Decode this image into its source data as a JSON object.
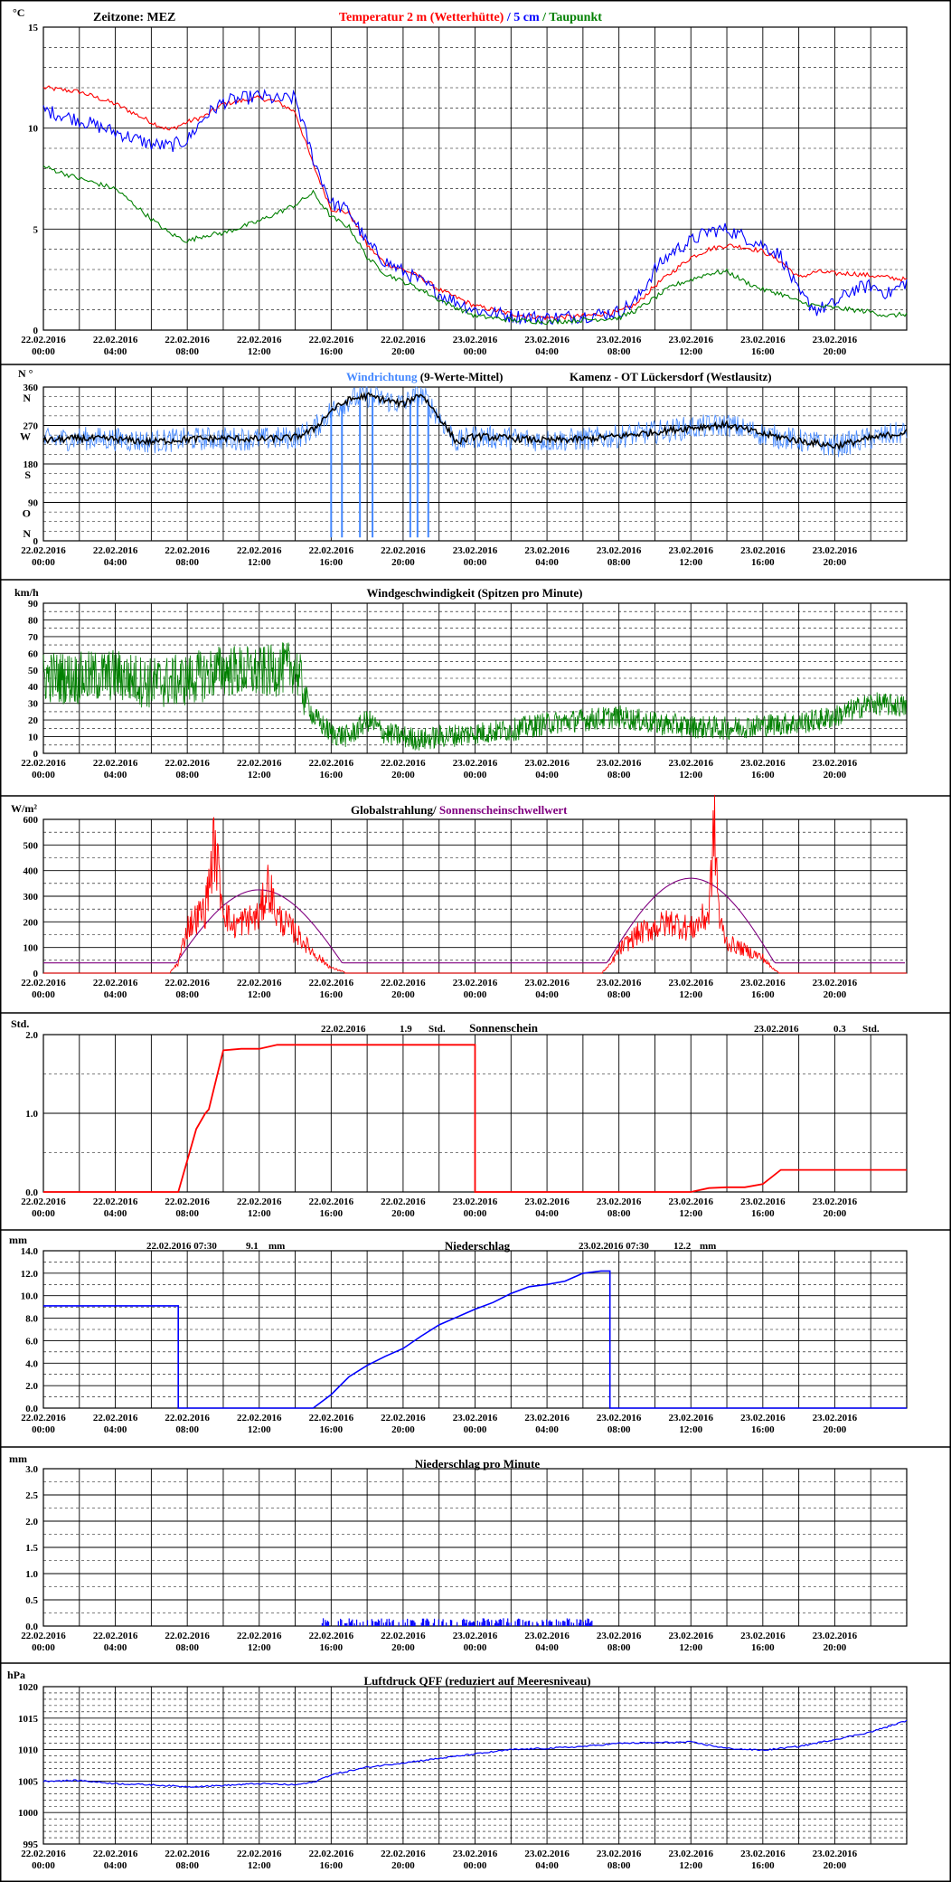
{
  "x_ticks": [
    {
      "date": "22.02.2016",
      "time": "00:00"
    },
    {
      "date": "22.02.2016",
      "time": "04:00"
    },
    {
      "date": "22.02.2016",
      "time": "08:00"
    },
    {
      "date": "22.02.2016",
      "time": "12:00"
    },
    {
      "date": "22.02.2016",
      "time": "16:00"
    },
    {
      "date": "22.02.2016",
      "time": "20:00"
    },
    {
      "date": "23.02.2016",
      "time": "00:00"
    },
    {
      "date": "23.02.2016",
      "time": "04:00"
    },
    {
      "date": "23.02.2016",
      "time": "08:00"
    },
    {
      "date": "23.02.2016",
      "time": "12:00"
    },
    {
      "date": "23.02.2016",
      "time": "16:00"
    },
    {
      "date": "23.02.2016",
      "time": "20:00"
    }
  ],
  "colors": {
    "red": "#ff0000",
    "blue": "#0000ff",
    "green": "#008000",
    "black": "#000000",
    "purple": "#800080",
    "lightblue": "#4488ff",
    "grid": "#000000"
  },
  "chart_data": [
    {
      "id": "temperature",
      "type": "line",
      "unit": "°C",
      "header_left": "Zeitzone: MEZ",
      "title_parts": [
        {
          "text": "Temperatur 2 m (Wetterhütte)",
          "color": "#ff0000"
        },
        {
          "text": " / ",
          "color": "#0000ff"
        },
        {
          "text": "5 cm",
          "color": "#0000ff"
        },
        {
          "text": " / ",
          "color": "#008000"
        },
        {
          "text": "Taupunkt",
          "color": "#008000"
        }
      ],
      "ylim": [
        0,
        15
      ],
      "yticks": [
        0,
        5,
        10,
        15
      ],
      "x_hours": [
        0,
        2,
        4,
        6,
        7,
        8,
        9,
        10,
        12,
        13,
        14,
        15,
        16,
        17,
        18,
        19,
        20,
        21,
        22,
        24,
        26,
        28,
        30,
        32,
        33,
        34,
        35,
        36,
        37,
        38,
        39,
        40,
        41,
        42,
        43,
        44,
        45,
        46,
        47,
        48
      ],
      "series": [
        {
          "name": "Temperatur 2 m (Wetterhütte)",
          "color": "#ff0000",
          "values": [
            12.0,
            11.8,
            11.2,
            10.3,
            9.9,
            10.3,
            10.6,
            11.2,
            11.5,
            11.3,
            10.8,
            8.2,
            6.0,
            5.8,
            4.2,
            3.3,
            3.0,
            2.6,
            2.0,
            1.2,
            0.8,
            0.6,
            0.7,
            0.9,
            1.3,
            2.2,
            2.9,
            3.6,
            4.0,
            4.2,
            4.1,
            3.9,
            3.4,
            2.6,
            2.9,
            2.8,
            2.8,
            2.7,
            2.6,
            2.5
          ]
        },
        {
          "name": "5 cm",
          "color": "#0000ff",
          "values": [
            10.9,
            10.4,
            9.8,
            9.2,
            9.1,
            9.4,
            10.6,
            11.3,
            11.6,
            11.4,
            11.5,
            8.5,
            6.3,
            5.9,
            4.3,
            3.4,
            2.9,
            2.4,
            1.8,
            1.0,
            0.7,
            0.6,
            0.7,
            0.9,
            1.5,
            3.0,
            3.9,
            4.4,
            4.9,
            5.0,
            4.6,
            4.2,
            3.7,
            1.8,
            1.0,
            1.3,
            2.0,
            2.2,
            1.8,
            2.4
          ]
        },
        {
          "name": "Taupunkt",
          "color": "#008000",
          "values": [
            8.1,
            7.5,
            7.0,
            5.5,
            4.8,
            4.4,
            4.7,
            4.8,
            5.4,
            5.8,
            6.2,
            6.8,
            5.6,
            5.1,
            3.6,
            2.8,
            2.4,
            2.0,
            1.5,
            0.7,
            0.5,
            0.4,
            0.5,
            0.6,
            1.0,
            1.6,
            2.2,
            2.5,
            2.8,
            2.9,
            2.4,
            2.0,
            1.8,
            1.4,
            1.2,
            1.1,
            1.0,
            0.9,
            0.7,
            0.8
          ]
        }
      ]
    },
    {
      "id": "wind_direction",
      "type": "line",
      "unit": "N °",
      "title_parts": [
        {
          "text": "Windrichtung",
          "color": "#4488ff"
        },
        {
          "text": " (9-Werte-Mittel)",
          "color": "#000000"
        }
      ],
      "station": "Kamenz - OT Lückersdorf (Westlausitz)",
      "ylim": [
        0,
        360
      ],
      "yticks": [
        0,
        90,
        180,
        270,
        360
      ],
      "direction_labels": [
        {
          "label": "N",
          "value": 360
        },
        {
          "label": "W",
          "value": 270
        },
        {
          "label": "S",
          "value": 180
        },
        {
          "label": "O",
          "value": 90
        },
        {
          "label": "N",
          "value": 0
        }
      ],
      "x_hours": [
        0,
        2,
        4,
        6,
        8,
        10,
        12,
        14,
        15,
        16,
        17,
        18,
        19,
        20,
        21,
        22,
        23,
        24,
        26,
        28,
        30,
        32,
        34,
        36,
        38,
        40,
        42,
        44,
        46,
        48
      ],
      "series": [
        {
          "name": "9-Werte-Mittel",
          "color": "#000000",
          "values": [
            235,
            240,
            238,
            232,
            238,
            240,
            238,
            242,
            260,
            305,
            330,
            340,
            330,
            320,
            345,
            290,
            230,
            245,
            240,
            235,
            238,
            245,
            255,
            265,
            272,
            250,
            235,
            222,
            240,
            255
          ]
        }
      ],
      "spikes_hours": [
        16.0,
        16.6,
        17.6,
        18.3,
        20.4,
        20.8,
        21.4
      ]
    },
    {
      "id": "wind_speed",
      "type": "line",
      "unit": "km/h",
      "title": "Windgeschwindigkeit (Spitzen pro Minute)",
      "ylim": [
        0,
        90
      ],
      "yticks": [
        0,
        10,
        20,
        30,
        40,
        50,
        60,
        70,
        80,
        90
      ],
      "x_hours": [
        0,
        2,
        4,
        6,
        8,
        10,
        12,
        13,
        14,
        15,
        16,
        17,
        18,
        19,
        20,
        21,
        22,
        24,
        26,
        28,
        30,
        32,
        34,
        36,
        38,
        40,
        42,
        44,
        46,
        48
      ],
      "series": [
        {
          "name": "Windgeschwindigkeit",
          "color": "#008000",
          "values": [
            46,
            45,
            47,
            42,
            44,
            50,
            48,
            50,
            52,
            22,
            12,
            10,
            20,
            12,
            10,
            8,
            10,
            12,
            14,
            18,
            20,
            22,
            18,
            16,
            15,
            17,
            18,
            22,
            30,
            28
          ]
        }
      ]
    },
    {
      "id": "radiation",
      "type": "line",
      "unit": "W/m²",
      "title_parts": [
        {
          "text": "Globalstrahlung/ ",
          "color": "#000000"
        },
        {
          "text": "Sonnenscheinschwellwert",
          "color": "#800080"
        }
      ],
      "ylim": [
        0,
        600
      ],
      "yticks": [
        0,
        100,
        200,
        300,
        400,
        500,
        600
      ],
      "x_hours": [
        0,
        7,
        7.5,
        8,
        9,
        9.5,
        10,
        10.5,
        11,
        12,
        12.5,
        13,
        14,
        15,
        16,
        17,
        24,
        31,
        31.5,
        32,
        33,
        34,
        35,
        36,
        37,
        37.3,
        37.6,
        38,
        39,
        40,
        40.5,
        41,
        48
      ],
      "series": [
        {
          "name": "Globalstrahlung",
          "color": "#ff0000",
          "values": [
            0,
            0,
            40,
            180,
            250,
            500,
            260,
            180,
            200,
            220,
            350,
            220,
            160,
            80,
            20,
            0,
            0,
            0,
            30,
            90,
            150,
            180,
            200,
            170,
            230,
            570,
            200,
            120,
            90,
            60,
            20,
            0,
            0
          ]
        },
        {
          "name": "Sonnenscheinschwellwert",
          "color": "#800080",
          "shape": "dome",
          "base": 40,
          "domes": [
            {
              "start": 7.0,
              "peak": 12.0,
              "end": 17.0,
              "max": 325
            },
            {
              "start": 31.0,
              "peak": 36.0,
              "end": 41.0,
              "max": 370
            }
          ]
        }
      ]
    },
    {
      "id": "sunshine",
      "type": "line",
      "unit": "Std.",
      "title": "Sonnenschein",
      "summaries": [
        {
          "date": "22.02.2016",
          "value": "1.9",
          "unit": "Std."
        },
        {
          "date": "23.02.2016",
          "value": "0.3",
          "unit": "Std."
        }
      ],
      "ylim": [
        0,
        2.0
      ],
      "yticks": [
        0.0,
        1.0,
        2.0
      ],
      "ytick_labels": [
        "0.0",
        "1.0",
        "2.0"
      ],
      "x_hours": [
        0,
        7.5,
        8.5,
        9.0,
        9.2,
        10,
        11,
        12,
        13,
        14,
        24,
        24,
        36,
        37,
        38,
        39,
        40,
        41,
        48
      ],
      "series": [
        {
          "name": "Sonnenschein",
          "color": "#ff0000",
          "values": [
            0,
            0,
            0.8,
            1.0,
            1.05,
            1.8,
            1.82,
            1.82,
            1.87,
            1.87,
            1.87,
            0,
            0,
            0.05,
            0.06,
            0.06,
            0.1,
            0.28,
            0.28
          ]
        }
      ]
    },
    {
      "id": "precipitation",
      "type": "line",
      "unit": "mm",
      "title": "Niederschlag",
      "summaries": [
        {
          "date": "22.02.2016 07:30",
          "value": "9.1",
          "unit": "mm"
        },
        {
          "date": "23.02.2016 07:30",
          "value": "12.2",
          "unit": "mm"
        }
      ],
      "ylim": [
        0,
        14
      ],
      "yticks": [
        0,
        2,
        4,
        6,
        8,
        10,
        12,
        14
      ],
      "ytick_labels": [
        "0.0",
        "2.0",
        "4.0",
        "6.0",
        "8.0",
        "10.0",
        "12.0",
        "14.0"
      ],
      "x_hours": [
        0,
        7.5,
        7.5,
        15,
        16,
        17,
        18,
        19,
        20,
        21,
        22,
        23,
        24,
        25,
        26,
        27,
        28,
        29,
        30,
        31,
        31.5,
        31.5,
        48
      ],
      "series": [
        {
          "name": "Niederschlag",
          "color": "#0000ff",
          "values": [
            9.1,
            9.1,
            0,
            0,
            1.2,
            2.8,
            3.8,
            4.6,
            5.3,
            6.4,
            7.4,
            8.1,
            8.8,
            9.4,
            10.2,
            10.8,
            11.0,
            11.3,
            12.0,
            12.2,
            12.2,
            0,
            0
          ]
        }
      ]
    },
    {
      "id": "precip_minute",
      "type": "bar",
      "unit": "mm",
      "title": "Niederschlag pro Minute",
      "ylim": [
        0,
        3.0
      ],
      "yticks": [
        0.0,
        0.5,
        1.0,
        1.5,
        2.0,
        2.5,
        3.0
      ],
      "ytick_labels": [
        "0.0",
        "0.5",
        "1.0",
        "1.5",
        "2.0",
        "2.5",
        "3.0"
      ],
      "range_hours": [
        15.5,
        30.5
      ],
      "typical_value": 0.1,
      "series": [
        {
          "name": "Niederschlag pro Minute",
          "color": "#0000ff"
        }
      ]
    },
    {
      "id": "pressure",
      "type": "line",
      "unit": "hPa",
      "title": "Luftdruck QFF (reduziert auf Meeresniveau)",
      "ylim": [
        995,
        1020
      ],
      "yticks": [
        995,
        1000,
        1005,
        1010,
        1015,
        1020
      ],
      "x_hours": [
        0,
        2,
        4,
        6,
        8,
        10,
        12,
        14,
        15,
        16,
        18,
        20,
        22,
        24,
        26,
        28,
        30,
        32,
        34,
        36,
        38,
        40,
        42,
        44,
        46,
        48
      ],
      "series": [
        {
          "name": "Luftdruck QFF",
          "color": "#0000ff",
          "values": [
            1005,
            1005.1,
            1004.6,
            1004.4,
            1004.1,
            1004.3,
            1004.6,
            1004.4,
            1004.8,
            1006,
            1007.2,
            1007.9,
            1008.6,
            1009.3,
            1010,
            1010.2,
            1010.5,
            1011,
            1011.1,
            1011.2,
            1010.2,
            1009.9,
            1010.5,
            1011.6,
            1012.8,
            1014.6
          ]
        }
      ]
    }
  ]
}
